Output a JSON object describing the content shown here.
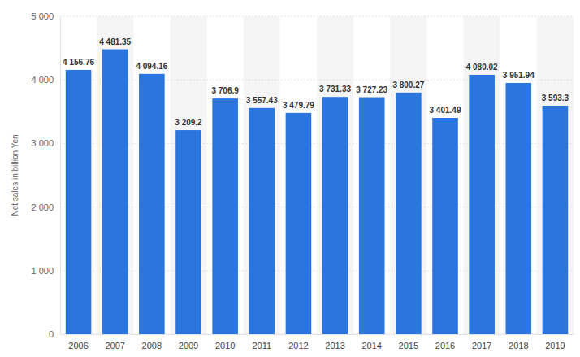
{
  "chart_data": {
    "type": "bar",
    "y_label": "Net sales in billion Yen",
    "categories": [
      "2006",
      "2007",
      "2008",
      "2009",
      "2010",
      "2011",
      "2012",
      "2013",
      "2014",
      "2015",
      "2016",
      "2017",
      "2018",
      "2019"
    ],
    "values": [
      4156.76,
      4481.35,
      4094.16,
      3209.2,
      3706.9,
      3557.43,
      3479.79,
      3731.33,
      3727.23,
      3800.27,
      3401.49,
      4080.02,
      3951.94,
      3593.3
    ],
    "value_labels": [
      "4 156.76",
      "4 481.35",
      "4 094.16",
      "3 209.2",
      "3 706.9",
      "3 557.43",
      "3 479.79",
      "3 731.33",
      "3 727.23",
      "3 800.27",
      "3 401.49",
      "4 080.02",
      "3 951.94",
      "3 593.3"
    ],
    "color": "#2b76de",
    "ylim": [
      0,
      5000
    ],
    "yticks": [
      0,
      {
        "value": 1000,
        "label": "1 000"
      },
      {
        "value": 2000,
        "label": "2 000"
      },
      {
        "value": 3000,
        "label": "3 000"
      },
      {
        "value": 4000,
        "label": "4 000"
      },
      {
        "value": 5000,
        "label": "5 000"
      }
    ],
    "grid": true,
    "data_labels": true
  }
}
